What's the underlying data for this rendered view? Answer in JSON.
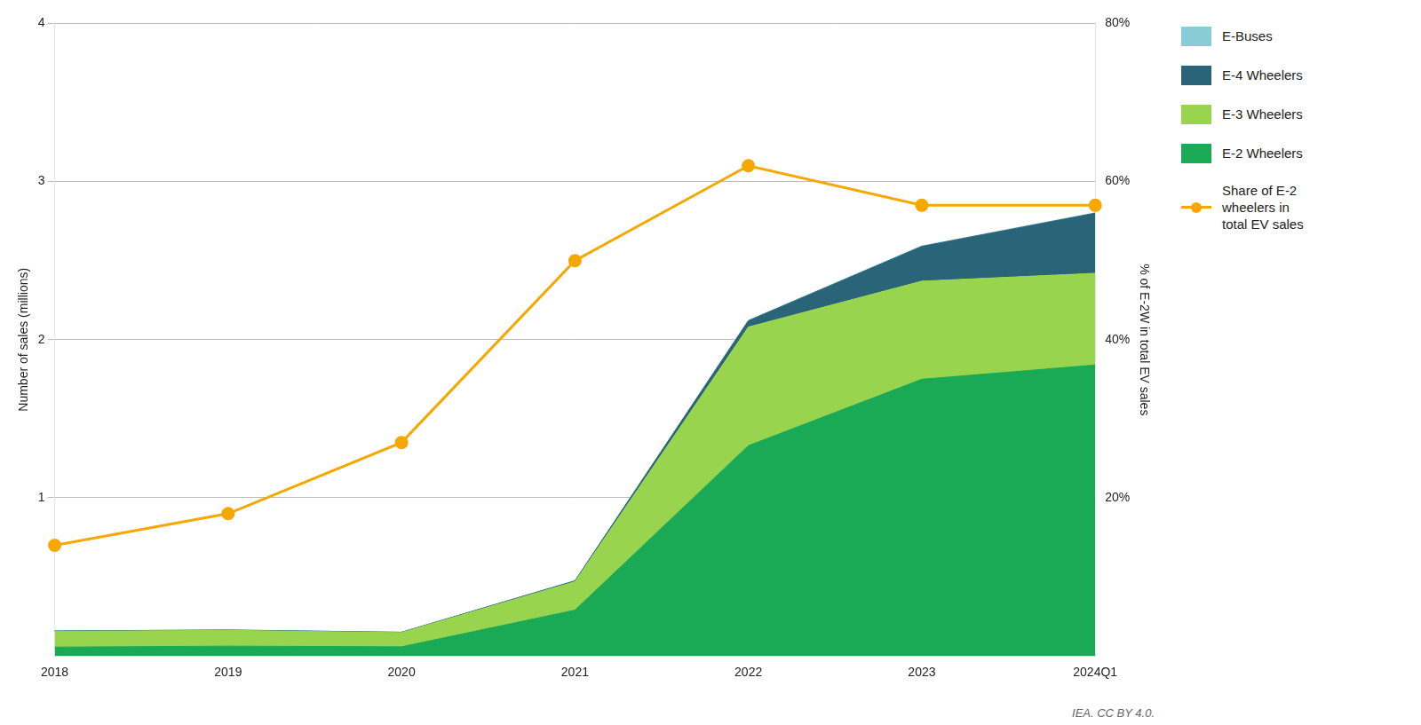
{
  "chart_data": {
    "type": "area",
    "stacked": true,
    "categories": [
      "2018",
      "2019",
      "2020",
      "2021",
      "2022",
      "2023",
      "2024Q1"
    ],
    "series": [
      {
        "name": "E-2 Wheelers",
        "color": "#1aaa55",
        "values": [
          0.056,
          0.062,
          0.058,
          0.29,
          1.33,
          1.75,
          1.84
        ]
      },
      {
        "name": "E-3 Wheelers",
        "color": "#99d44f",
        "values": [
          0.1,
          0.1,
          0.09,
          0.18,
          0.75,
          0.62,
          0.58
        ]
      },
      {
        "name": "E-4 Wheelers",
        "color": "#2a6478",
        "values": [
          0.002,
          0.002,
          0.002,
          0.005,
          0.04,
          0.22,
          0.38
        ]
      },
      {
        "name": "E-Buses",
        "color": "#88ccd8",
        "values": [
          0.001,
          0.001,
          0.001,
          0.001,
          0.002,
          0.003,
          0.003
        ]
      },
      {
        "name": "Share of E-2\nwheelers in\ntotal EV sales",
        "type": "line",
        "axis": "y2",
        "marker": "circle",
        "color": "#f5a800",
        "values": [
          14,
          18,
          27,
          50,
          62,
          57,
          57
        ]
      }
    ],
    "ylabel": "Number of sales (millions)",
    "y2label": "% of E-2W in total EV sales",
    "ylim": [
      0,
      4
    ],
    "yticks": [
      1,
      2,
      3,
      4
    ],
    "y2lim": [
      0,
      80
    ],
    "y2ticks": [
      {
        "value": 20,
        "label": "20%"
      },
      {
        "value": 40,
        "label": "40%"
      },
      {
        "value": 60,
        "label": "60%"
      },
      {
        "value": 80,
        "label": "80%"
      }
    ],
    "grid": true,
    "legend": "right",
    "annotations": [
      "IEA. CC BY 4.0."
    ]
  }
}
